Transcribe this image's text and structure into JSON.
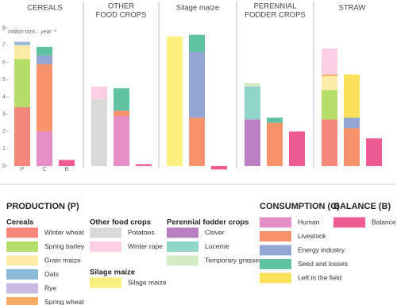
{
  "chart_data": {
    "type": "bar",
    "stacked": true,
    "panels": [
      [
        "CEREALS"
      ],
      [
        "OTHER",
        "FOOD CROPS"
      ],
      [
        "Silage maize"
      ],
      [
        "PERENNIAL",
        "FODDER CROPS"
      ],
      [
        "STRAW"
      ]
    ],
    "bar_labels": [
      "P",
      "C",
      "B"
    ],
    "y_unit": "million tons · year⁻¹",
    "ylim": [
      -0.4,
      8.3
    ],
    "yticks": [
      0,
      1,
      2,
      3,
      4,
      5,
      6,
      7,
      8
    ],
    "grid": false,
    "legend_groups": [
      {
        "title": "PRODUCTION (P)",
        "subgroups": [
          {
            "title": "Cereals",
            "series": [
              {
                "name": "Winter wheat",
                "color": "#f4877a",
                "values": [
                  3.4,
                  null,
                  null,
                  null,
                  2.7
                ]
              },
              {
                "name": "Spring barley",
                "color": "#b5dd6a",
                "values": [
                  2.8,
                  null,
                  null,
                  null,
                  1.7
                ]
              },
              {
                "name": "Grain maize",
                "color": "#fbeba6",
                "values": [
                  0.8,
                  null,
                  null,
                  null,
                  0.8
                ]
              },
              {
                "name": "Oats",
                "color": "#8bbbd9",
                "values": [
                  0.15,
                  null,
                  null,
                  null,
                  null
                ]
              },
              {
                "name": "Rye",
                "color": "#c8bde0",
                "values": [
                  0.05,
                  null,
                  null,
                  null,
                  null
                ]
              },
              {
                "name": "Spring wheat",
                "color": "#f6ab63",
                "values": [
                  null,
                  null,
                  null,
                  null,
                  0.1
                ]
              }
            ]
          },
          {
            "title": "Other food crops",
            "series": [
              {
                "name": "Potatoes",
                "color": "#d9d9d9",
                "values": [
                  null,
                  3.9,
                  null,
                  null,
                  null
                ]
              },
              {
                "name": "Winter rape",
                "color": "#fbcfe3",
                "values": [
                  null,
                  0.7,
                  null,
                  null,
                  1.5
                ]
              }
            ]
          },
          {
            "title": "Silage maize",
            "series": [
              {
                "name": "Silage maize",
                "color": "#fbef7d",
                "values": [
                  null,
                  null,
                  7.5,
                  null,
                  null
                ]
              }
            ]
          },
          {
            "title": "Perennial fodder crops",
            "series": [
              {
                "name": "Clover",
                "color": "#b980c1",
                "values": [
                  null,
                  null,
                  null,
                  2.7,
                  null
                ]
              },
              {
                "name": "Lucerne",
                "color": "#8fd6c8",
                "values": [
                  null,
                  null,
                  null,
                  1.9,
                  null
                ]
              },
              {
                "name": "Temporary grasses",
                "color": "#d3ecc5",
                "values": [
                  null,
                  null,
                  null,
                  0.2,
                  null
                ]
              }
            ]
          }
        ]
      },
      {
        "title": "CONSUMPTION (C)",
        "subgroups": [
          {
            "series": [
              {
                "name": "Human",
                "color": "#e58fc6",
                "values": [
                  2.0,
                  2.9,
                  null,
                  null,
                  null
                ]
              },
              {
                "name": "Livestock",
                "color": "#f7926a",
                "values": [
                  3.9,
                  0.3,
                  2.8,
                  2.5,
                  2.2
                ]
              },
              {
                "name": "Energy industry",
                "color": "#93a5d3",
                "values": [
                  0.5,
                  null,
                  3.8,
                  null,
                  0.6
                ]
              },
              {
                "name": "Seed and losses",
                "color": "#5fc2a0",
                "values": [
                  0.5,
                  1.3,
                  1.0,
                  0.3,
                  null
                ]
              },
              {
                "name": "Left in the field",
                "color": "#fbe05a",
                "values": [
                  null,
                  null,
                  null,
                  null,
                  2.5
                ]
              }
            ]
          }
        ]
      },
      {
        "title": "BALANCE (B)",
        "subgroups": [
          {
            "series": [
              {
                "name": "Balance",
                "color": "#f05a93",
                "values": [
                  0.35,
                  0.1,
                  -0.2,
                  2.0,
                  1.6
                ]
              }
            ]
          }
        ]
      }
    ]
  }
}
